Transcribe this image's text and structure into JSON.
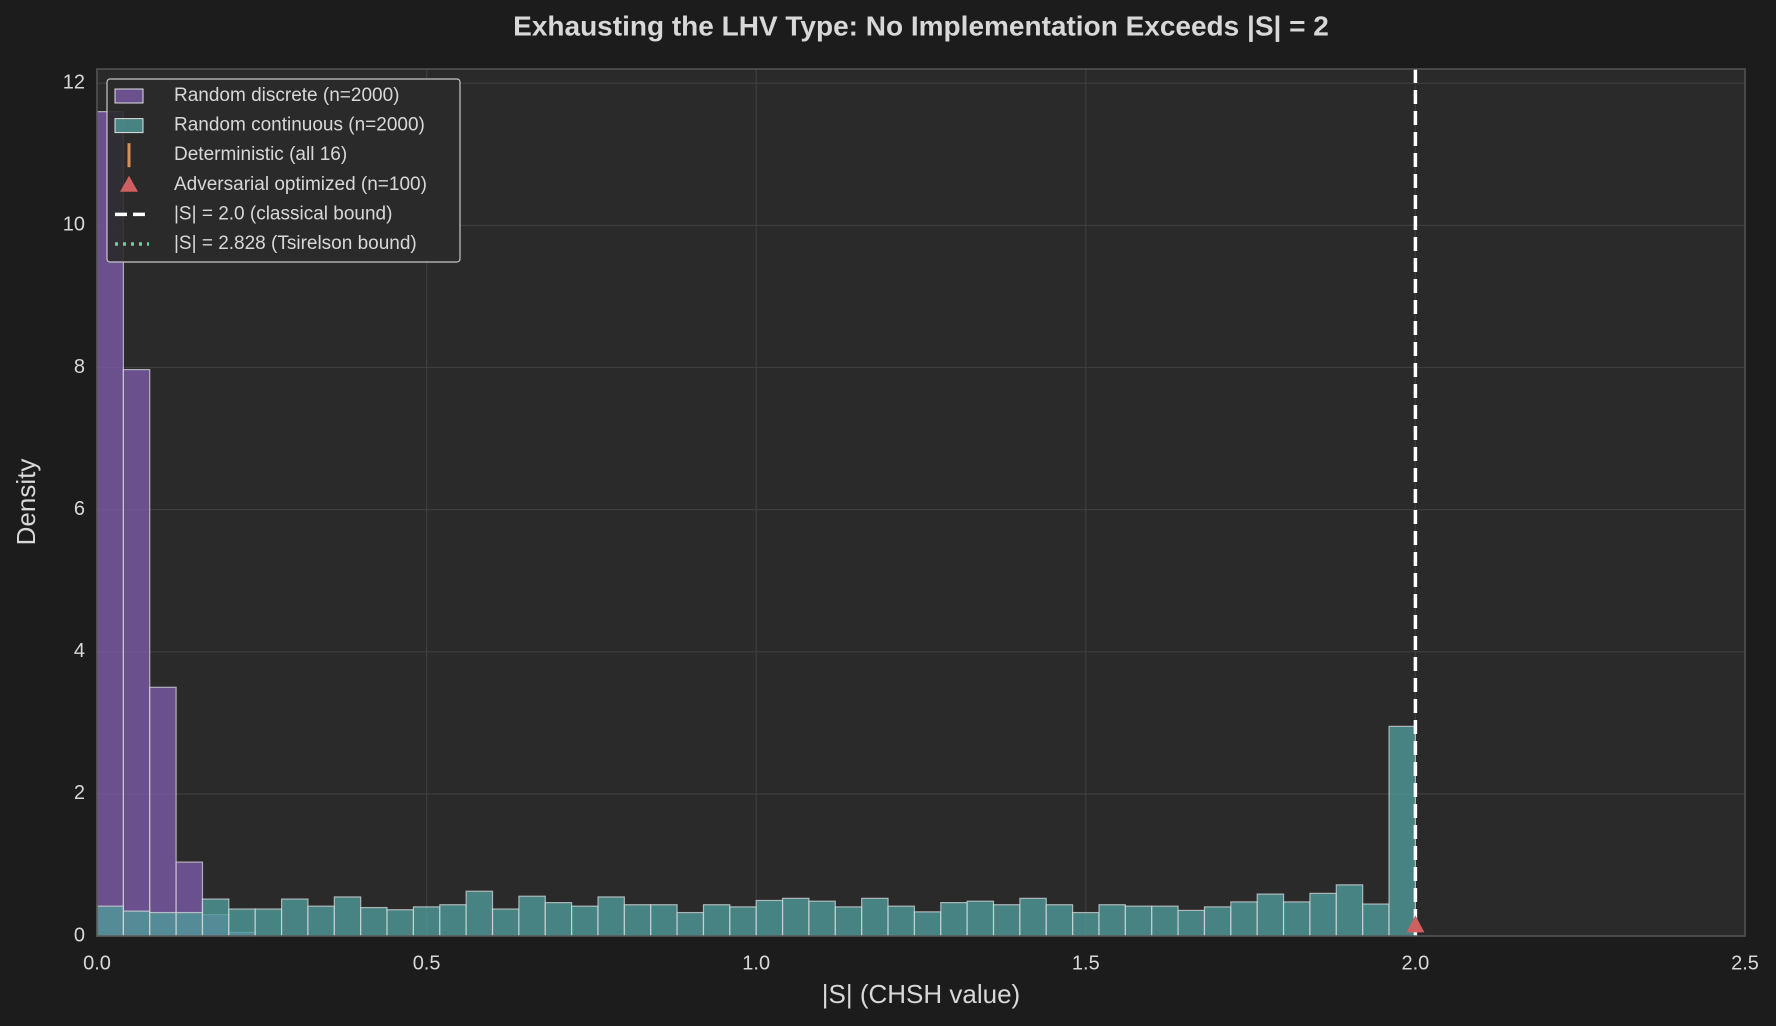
{
  "chart_data": {
    "type": "histogram",
    "title": "Exhausting the LHV Type: No Implementation Exceeds |S| = 2",
    "xlabel": "|S| (CHSH value)",
    "ylabel": "Density",
    "xlim": [
      0,
      2.5
    ],
    "ylim": [
      0,
      12.2
    ],
    "xticks": [
      {
        "value": 0,
        "label": "0.0"
      },
      0.5,
      {
        "value": 1,
        "label": "1.0"
      },
      1.5,
      {
        "value": 2,
        "label": "2.0"
      },
      2.5
    ],
    "yticks": [
      0,
      2,
      4,
      6,
      8,
      10,
      12
    ],
    "grid": true,
    "legend": "upper left",
    "series": [
      {
        "name": "Random discrete (n=2000)",
        "color": "#7b5aa6",
        "bins": [
          0,
          0.04,
          0.08,
          0.12,
          0.16,
          0.2,
          0.24
        ],
        "values": [
          11.6,
          7.97,
          3.5,
          1.04,
          0.3,
          0.05
        ]
      },
      {
        "name": "Random continuous (n=2000)",
        "color": "#4f9a9a",
        "bins": [
          0,
          0.04,
          0.08,
          0.12,
          0.16,
          0.2,
          0.24,
          0.28,
          0.32,
          0.36,
          0.4,
          0.44,
          0.48,
          0.52,
          0.56,
          0.6,
          0.64,
          0.68,
          0.72,
          0.76,
          0.8,
          0.84,
          0.88,
          0.92,
          0.96,
          1.0,
          1.04,
          1.08,
          1.12,
          1.16,
          1.2,
          1.24,
          1.28,
          1.32,
          1.36,
          1.4,
          1.44,
          1.48,
          1.52,
          1.56,
          1.6,
          1.64,
          1.68,
          1.72,
          1.76,
          1.8,
          1.84,
          1.88,
          1.92,
          1.96,
          2.0
        ],
        "values": [
          0.42,
          0.35,
          0.33,
          0.33,
          0.52,
          0.38,
          0.38,
          0.52,
          0.42,
          0.55,
          0.4,
          0.37,
          0.41,
          0.44,
          0.63,
          0.38,
          0.56,
          0.47,
          0.42,
          0.55,
          0.44,
          0.44,
          0.33,
          0.44,
          0.41,
          0.5,
          0.53,
          0.49,
          0.41,
          0.53,
          0.42,
          0.34,
          0.47,
          0.49,
          0.44,
          0.53,
          0.44,
          0.33,
          0.44,
          0.42,
          0.42,
          0.36,
          0.41,
          0.48,
          0.59,
          0.48,
          0.6,
          0.72,
          0.45,
          2.95
        ]
      }
    ],
    "deterministic": {
      "name": "Deterministic (all 16)",
      "color": "#d4915a"
    },
    "adversarial": {
      "name": "Adversarial optimized (n=100)",
      "color": "#d06060",
      "x": [
        2.0
      ],
      "y": [
        0.15
      ]
    },
    "classical_bound": {
      "name": "|S| = 2.0 (classical bound)",
      "value": 2.0,
      "color": "#ffffff"
    },
    "tsirelson_bound": {
      "name": "|S| = 2.828 (Tsirelson bound)",
      "color": "#5fd3a0"
    }
  }
}
